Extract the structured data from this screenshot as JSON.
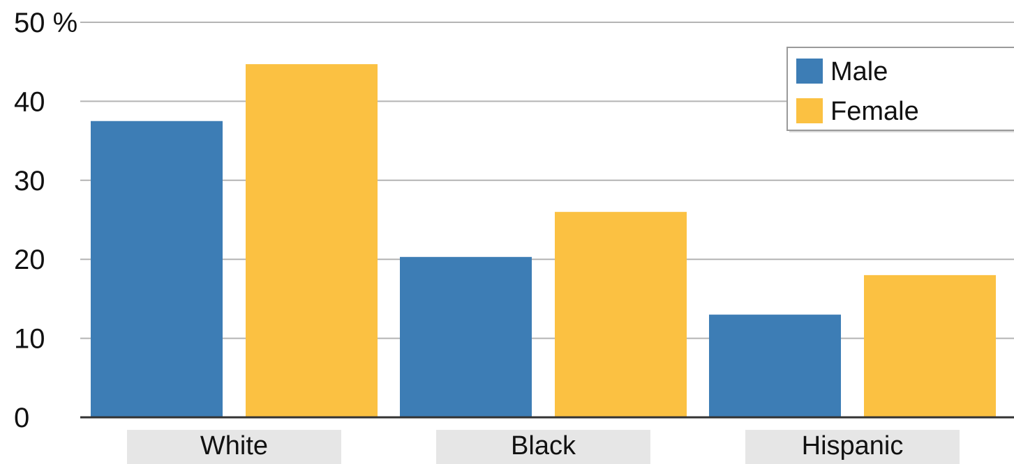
{
  "chart_data": {
    "type": "bar",
    "title": "",
    "xlabel": "",
    "ylabel": "",
    "y_unit_label": "%",
    "ylim": [
      0,
      50
    ],
    "yticks": [
      0,
      10,
      20,
      30,
      40,
      50
    ],
    "grid": true,
    "legend_position": "top-right",
    "categories": [
      "White",
      "Black",
      "Hispanic"
    ],
    "series": [
      {
        "name": "Male",
        "color": "#3d7db5",
        "values": [
          37.5,
          20.3,
          13.0
        ]
      },
      {
        "name": "Female",
        "color": "#fbc142",
        "values": [
          44.7,
          26.0,
          18.0
        ]
      }
    ]
  }
}
